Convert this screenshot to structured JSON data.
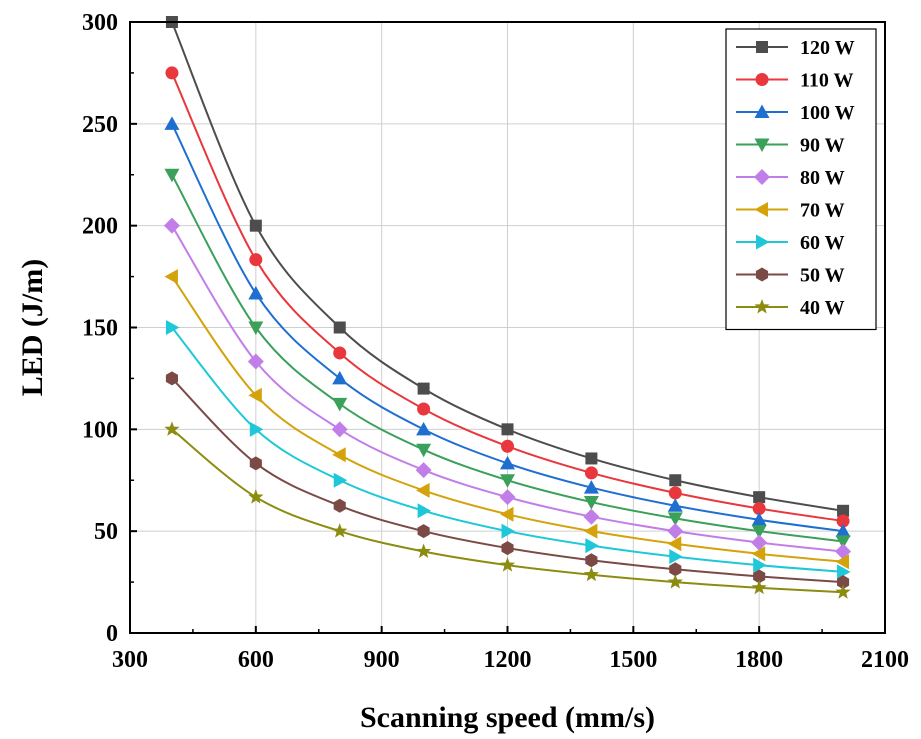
{
  "chart_data": {
    "type": "line",
    "xlabel": "Scanning speed (mm/s)",
    "ylabel": "LED (J/m)",
    "xlim": [
      300,
      2100
    ],
    "ylim": [
      0,
      300
    ],
    "xticks": [
      300,
      600,
      900,
      1200,
      1500,
      1800,
      2100
    ],
    "yticks": [
      0,
      50,
      100,
      150,
      200,
      250,
      300
    ],
    "grid": true,
    "legend_position": "top-right",
    "x": [
      400,
      600,
      800,
      1000,
      1200,
      1400,
      1600,
      1800,
      2000
    ],
    "series": [
      {
        "name": "120 W",
        "color": "#4d4d4d",
        "marker": "square",
        "values": [
          300,
          200,
          150,
          120,
          100,
          85.7,
          75,
          66.7,
          60
        ]
      },
      {
        "name": "110 W",
        "color": "#e8383d",
        "marker": "circle",
        "values": [
          275,
          183.3,
          137.5,
          110,
          91.7,
          78.6,
          68.8,
          61.1,
          55
        ]
      },
      {
        "name": "100 W",
        "color": "#1f6fd1",
        "marker": "triangle-up",
        "values": [
          250,
          166.7,
          125,
          100,
          83.3,
          71.4,
          62.5,
          55.6,
          50
        ]
      },
      {
        "name": "90 W",
        "color": "#3aa05a",
        "marker": "triangle-down",
        "values": [
          225,
          150,
          112.5,
          90,
          75,
          64.3,
          56.3,
          50,
          45
        ]
      },
      {
        "name": "80 W",
        "color": "#c27ee8",
        "marker": "diamond",
        "values": [
          200,
          133.3,
          100,
          80,
          66.7,
          57.1,
          50,
          44.4,
          40
        ]
      },
      {
        "name": "70 W",
        "color": "#d4a20a",
        "marker": "triangle-left",
        "values": [
          175,
          116.7,
          87.5,
          70,
          58.3,
          50,
          43.8,
          38.9,
          35
        ]
      },
      {
        "name": "60 W",
        "color": "#1ec8d8",
        "marker": "triangle-right",
        "values": [
          150,
          100,
          75,
          60,
          50,
          42.9,
          37.5,
          33.3,
          30
        ]
      },
      {
        "name": "50 W",
        "color": "#7b4a45",
        "marker": "hexagon",
        "values": [
          125,
          83.3,
          62.5,
          50,
          41.7,
          35.7,
          31.3,
          27.8,
          25
        ]
      },
      {
        "name": "40 W",
        "color": "#8c8c10",
        "marker": "star",
        "values": [
          100,
          66.7,
          50,
          40,
          33.3,
          28.6,
          25,
          22.2,
          20
        ]
      }
    ]
  }
}
